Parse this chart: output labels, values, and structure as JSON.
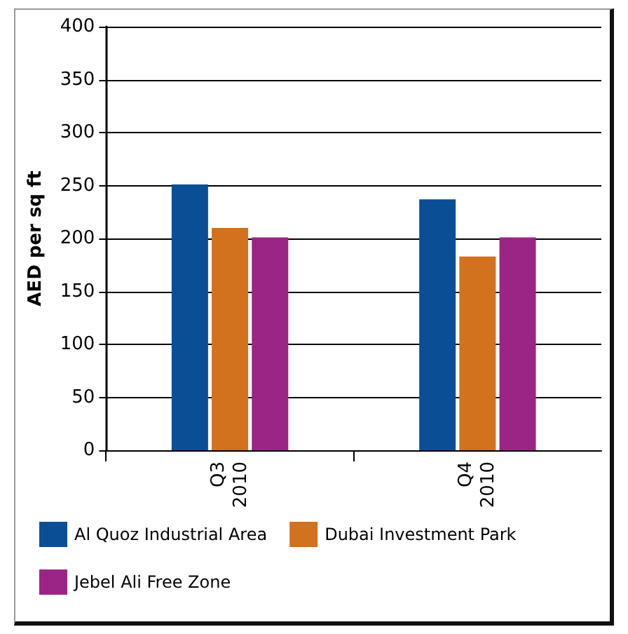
{
  "chart_data": {
    "type": "bar",
    "ylabel": "AED per sq ft",
    "categories": [
      "Q3\n2010",
      "Q4\n2010"
    ],
    "series": [
      {
        "name": "Al Quoz Industrial Area",
        "color": "#0a4f96",
        "values": [
          251,
          237
        ]
      },
      {
        "name": "Dubai Investment Park",
        "color": "#d2711e",
        "values": [
          210,
          183
        ]
      },
      {
        "name": "Jebel Ali Free Zone",
        "color": "#9a2585",
        "values": [
          201,
          201
        ]
      }
    ],
    "ylim": [
      0,
      400
    ],
    "yticks": [
      0,
      50,
      100,
      150,
      200,
      250,
      300,
      350,
      400
    ],
    "grid": "y",
    "legend": "bottom"
  }
}
